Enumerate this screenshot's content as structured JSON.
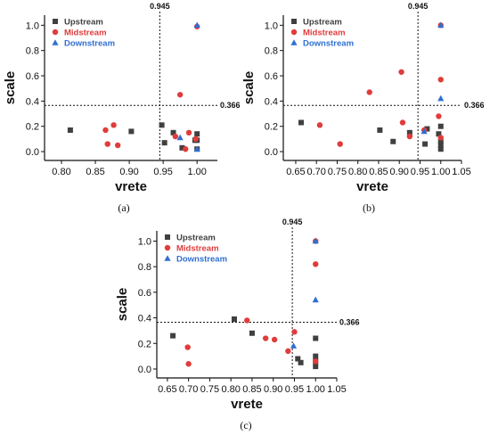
{
  "figure": {
    "captions": [
      "(a)",
      "(b)",
      "(c)"
    ]
  },
  "colors": {
    "Upstream": "#404040",
    "Midstream": "#e03c3c",
    "Downstream": "#2f6fd0"
  },
  "chart_data": [
    {
      "type": "scatter",
      "panel": "(a)",
      "xlabel": "vrete",
      "ylabel": "scale",
      "xlim": [
        0.775,
        1.03
      ],
      "ylim": [
        -0.07,
        1.08
      ],
      "xticks": [
        "0.80",
        "0.85",
        "0.90",
        "0.95",
        "1.00"
      ],
      "yticks": [
        "0.0",
        "0.2",
        "0.4",
        "0.6",
        "0.8",
        "1.0"
      ],
      "threshold_x": 0.945,
      "threshold_x_label": "0.945",
      "threshold_y": 0.366,
      "threshold_y_label": "0.366",
      "legend_position": "top-left",
      "series": [
        {
          "name": "Upstream",
          "marker": "square",
          "x": [
            0.813,
            0.903,
            0.948,
            0.952,
            0.965,
            0.978,
            0.997,
            1.0,
            1.0,
            1.0
          ],
          "y": [
            0.17,
            0.16,
            0.21,
            0.07,
            0.15,
            0.03,
            0.09,
            0.14,
            0.09,
            0.02
          ]
        },
        {
          "name": "Midstream",
          "marker": "circle",
          "x": [
            0.865,
            0.868,
            0.877,
            0.883,
            0.968,
            0.975,
            0.983,
            0.988,
            0.998,
            1.0
          ],
          "y": [
            0.17,
            0.06,
            0.21,
            0.05,
            0.12,
            0.45,
            0.02,
            0.15,
            0.1,
            0.99
          ]
        },
        {
          "name": "Downstream",
          "marker": "triangle",
          "x": [
            0.975,
            1.0,
            1.0
          ],
          "y": [
            0.11,
            1.0,
            0.02
          ]
        }
      ]
    },
    {
      "type": "scatter",
      "panel": "(b)",
      "xlabel": "vrete",
      "ylabel": "scale",
      "xlim": [
        0.62,
        1.05
      ],
      "ylim": [
        -0.07,
        1.08
      ],
      "xticks": [
        "0.65",
        "0.70",
        "0.75",
        "0.80",
        "0.85",
        "0.90",
        "0.95",
        "1.00",
        "1.05"
      ],
      "yticks": [
        "0.0",
        "0.2",
        "0.4",
        "0.6",
        "0.8",
        "1.0"
      ],
      "threshold_x": 0.945,
      "threshold_x_label": "0.945",
      "threshold_y": 0.366,
      "threshold_y_label": "0.366",
      "legend_position": "top-left",
      "series": [
        {
          "name": "Upstream",
          "marker": "square",
          "x": [
            0.663,
            0.853,
            0.885,
            0.925,
            0.962,
            0.967,
            0.995,
            1.0,
            1.0,
            1.0,
            1.0
          ],
          "y": [
            0.23,
            0.17,
            0.08,
            0.15,
            0.06,
            0.18,
            0.14,
            0.08,
            0.05,
            0.02,
            0.2
          ]
        },
        {
          "name": "Midstream",
          "marker": "circle",
          "x": [
            0.708,
            0.757,
            0.828,
            0.905,
            0.908,
            0.925,
            0.96,
            0.995,
            1.0,
            1.0,
            1.0
          ],
          "y": [
            0.21,
            0.06,
            0.47,
            0.63,
            0.23,
            0.12,
            0.17,
            0.28,
            0.57,
            0.11,
            1.0
          ]
        },
        {
          "name": "Downstream",
          "marker": "triangle",
          "x": [
            0.96,
            1.0,
            1.0
          ],
          "y": [
            0.16,
            0.42,
            1.0
          ]
        }
      ]
    },
    {
      "type": "scatter",
      "panel": "(c)",
      "xlabel": "vrete",
      "ylabel": "scale",
      "xlim": [
        0.625,
        1.05
      ],
      "ylim": [
        -0.07,
        1.08
      ],
      "xticks": [
        "0.65",
        "0.70",
        "0.75",
        "0.80",
        "0.85",
        "0.90",
        "0.95",
        "1.00",
        "1.05"
      ],
      "yticks": [
        "0.0",
        "0.2",
        "0.4",
        "0.6",
        "0.8",
        "1.0"
      ],
      "threshold_x": 0.945,
      "threshold_x_label": "0.945",
      "threshold_y": 0.366,
      "threshold_y_label": "0.366",
      "legend_position": "top-left",
      "series": [
        {
          "name": "Upstream",
          "marker": "square",
          "x": [
            0.663,
            0.808,
            0.85,
            0.958,
            0.965,
            1.0,
            1.0,
            1.0,
            1.0
          ],
          "y": [
            0.26,
            0.39,
            0.28,
            0.08,
            0.05,
            0.24,
            0.1,
            0.02,
            0.06
          ]
        },
        {
          "name": "Midstream",
          "marker": "circle",
          "x": [
            0.698,
            0.7,
            0.838,
            0.882,
            0.903,
            0.935,
            0.95,
            1.0,
            1.0,
            1.0
          ],
          "y": [
            0.17,
            0.04,
            0.38,
            0.24,
            0.23,
            0.14,
            0.29,
            0.82,
            1.0,
            0.06
          ]
        },
        {
          "name": "Downstream",
          "marker": "triangle",
          "x": [
            0.948,
            1.0,
            1.0
          ],
          "y": [
            0.18,
            0.54,
            1.0
          ]
        }
      ]
    }
  ]
}
